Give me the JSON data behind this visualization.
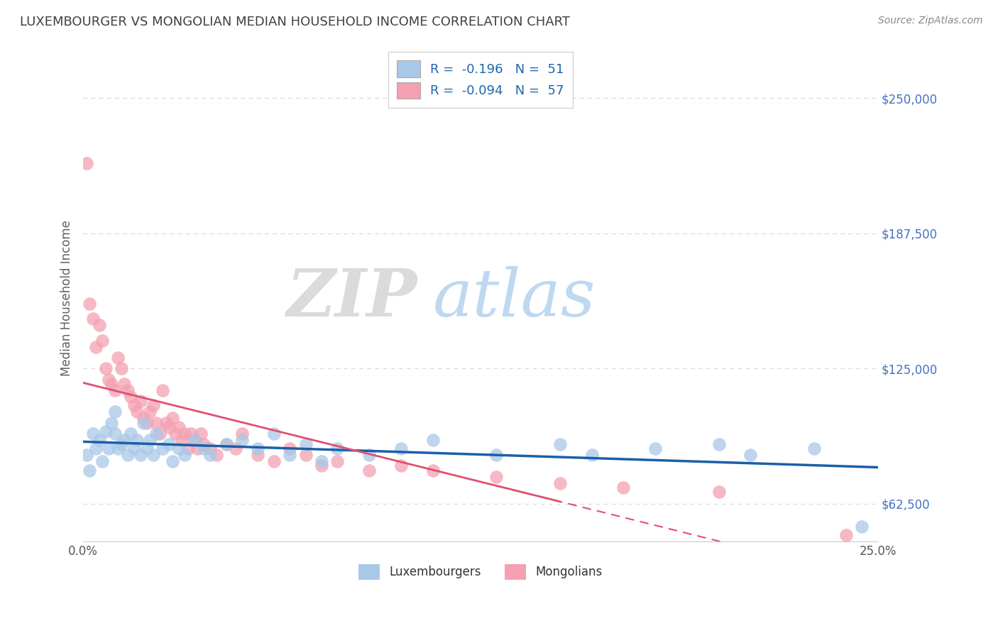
{
  "title": "LUXEMBOURGER VS MONGOLIAN MEDIAN HOUSEHOLD INCOME CORRELATION CHART",
  "source_text": "Source: ZipAtlas.com",
  "ylabel": "Median Household Income",
  "xlim": [
    0.0,
    0.25
  ],
  "ylim": [
    45000,
    270000
  ],
  "xticks": [
    0.0,
    0.05,
    0.1,
    0.15,
    0.2,
    0.25
  ],
  "xticklabels": [
    "0.0%",
    "",
    "",
    "",
    "",
    "25.0%"
  ],
  "yticks": [
    62500,
    125000,
    187500,
    250000
  ],
  "yticklabels": [
    "$62,500",
    "$125,000",
    "$187,500",
    "$250,000"
  ],
  "blue_color": "#a8c8e8",
  "pink_color": "#f4a0b0",
  "blue_line_color": "#1a5fa8",
  "pink_line_color": "#e05070",
  "legend_blue_label": "R =  -0.196   N =  51",
  "legend_pink_label": "R =  -0.094   N =  57",
  "watermark_zip": "ZIP",
  "watermark_atlas": "atlas",
  "background_color": "#ffffff",
  "grid_color": "#d8d8d8",
  "title_color": "#404040",
  "axis_label_color": "#606060",
  "right_tick_color": "#4472c4",
  "source_color": "#888888",
  "luxembourger_x": [
    0.001,
    0.002,
    0.003,
    0.004,
    0.005,
    0.006,
    0.007,
    0.008,
    0.009,
    0.01,
    0.01,
    0.011,
    0.012,
    0.013,
    0.014,
    0.015,
    0.016,
    0.017,
    0.018,
    0.019,
    0.02,
    0.021,
    0.022,
    0.023,
    0.025,
    0.027,
    0.028,
    0.03,
    0.032,
    0.035,
    0.038,
    0.04,
    0.045,
    0.05,
    0.055,
    0.06,
    0.065,
    0.07,
    0.075,
    0.08,
    0.09,
    0.1,
    0.11,
    0.13,
    0.15,
    0.16,
    0.18,
    0.2,
    0.21,
    0.23,
    0.245
  ],
  "luxembourger_y": [
    85000,
    78000,
    95000,
    88000,
    92000,
    82000,
    96000,
    88000,
    100000,
    95000,
    105000,
    88000,
    90000,
    92000,
    85000,
    95000,
    88000,
    92000,
    85000,
    100000,
    88000,
    92000,
    85000,
    95000,
    88000,
    90000,
    82000,
    88000,
    85000,
    92000,
    88000,
    85000,
    90000,
    92000,
    88000,
    95000,
    85000,
    90000,
    82000,
    88000,
    85000,
    88000,
    92000,
    85000,
    90000,
    85000,
    88000,
    90000,
    85000,
    88000,
    52000
  ],
  "mongolian_x": [
    0.001,
    0.002,
    0.003,
    0.004,
    0.005,
    0.006,
    0.007,
    0.008,
    0.009,
    0.01,
    0.011,
    0.012,
    0.013,
    0.014,
    0.015,
    0.016,
    0.017,
    0.018,
    0.019,
    0.02,
    0.021,
    0.022,
    0.023,
    0.024,
    0.025,
    0.026,
    0.027,
    0.028,
    0.029,
    0.03,
    0.031,
    0.032,
    0.033,
    0.034,
    0.035,
    0.036,
    0.037,
    0.038,
    0.04,
    0.042,
    0.045,
    0.048,
    0.05,
    0.055,
    0.06,
    0.065,
    0.07,
    0.075,
    0.08,
    0.09,
    0.1,
    0.11,
    0.13,
    0.15,
    0.17,
    0.2,
    0.24
  ],
  "mongolian_y": [
    220000,
    155000,
    148000,
    135000,
    145000,
    138000,
    125000,
    120000,
    118000,
    115000,
    130000,
    125000,
    118000,
    115000,
    112000,
    108000,
    105000,
    110000,
    102000,
    100000,
    105000,
    108000,
    100000,
    95000,
    115000,
    100000,
    98000,
    102000,
    95000,
    98000,
    92000,
    95000,
    88000,
    95000,
    92000,
    88000,
    95000,
    90000,
    88000,
    85000,
    90000,
    88000,
    95000,
    85000,
    82000,
    88000,
    85000,
    80000,
    82000,
    78000,
    80000,
    78000,
    75000,
    72000,
    70000,
    68000,
    48000
  ]
}
